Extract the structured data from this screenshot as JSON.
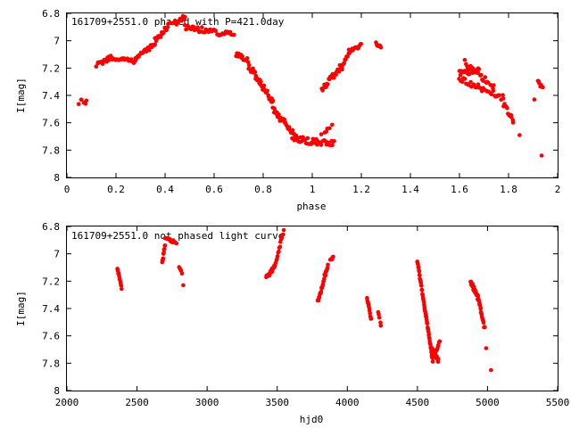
{
  "chart_data": [
    {
      "type": "scatter",
      "title": "161709+2551.0 phased with P=421.0day",
      "xlabel": "phase",
      "ylabel": "I[mag]",
      "xlim": [
        0,
        2
      ],
      "ylim": [
        8,
        6.8
      ],
      "y_inverted": true,
      "x_ticks": [
        0,
        0.2,
        0.4,
        0.6,
        0.8,
        1,
        1.2,
        1.4,
        1.6,
        1.8,
        2
      ],
      "x_tick_labels": [
        "0",
        "0.2",
        "0.4",
        "0.6",
        "0.8",
        "1",
        "1.2",
        "1.4",
        "1.6",
        "1.8",
        "2"
      ],
      "y_ticks": [
        6.8,
        7,
        7.2,
        7.4,
        7.6,
        7.8,
        8
      ],
      "y_tick_labels": [
        "6.8",
        "7",
        "7.2",
        "7.4",
        "7.6",
        "7.8",
        "8"
      ],
      "grid": false,
      "marker_color": "#ff0000",
      "segments": [
        {
          "x0": 0.05,
          "x1": 0.08,
          "y0": 7.45,
          "y1": 7.45,
          "n": 6,
          "spread": 0.04
        },
        {
          "x0": 0.12,
          "x1": 0.18,
          "y0": 7.18,
          "y1": 7.12,
          "n": 16,
          "spread": 0.03
        },
        {
          "x0": 0.18,
          "x1": 0.28,
          "y0": 7.13,
          "y1": 7.15,
          "n": 22,
          "spread": 0.03
        },
        {
          "x0": 0.28,
          "x1": 0.36,
          "y0": 7.13,
          "y1": 7.02,
          "n": 20,
          "spread": 0.03
        },
        {
          "x0": 0.36,
          "x1": 0.42,
          "y0": 7.0,
          "y1": 6.88,
          "n": 20,
          "spread": 0.04
        },
        {
          "x0": 0.43,
          "x1": 0.48,
          "y0": 6.88,
          "y1": 6.83,
          "n": 14,
          "spread": 0.04
        },
        {
          "x0": 0.48,
          "x1": 0.68,
          "y0": 6.9,
          "y1": 6.96,
          "n": 40,
          "spread": 0.04
        },
        {
          "x0": 0.69,
          "x1": 0.74,
          "y0": 7.1,
          "y1": 7.15,
          "n": 14,
          "spread": 0.04
        },
        {
          "x0": 0.74,
          "x1": 0.84,
          "y0": 7.18,
          "y1": 7.45,
          "n": 36,
          "spread": 0.05
        },
        {
          "x0": 0.84,
          "x1": 0.94,
          "y0": 7.5,
          "y1": 7.72,
          "n": 36,
          "spread": 0.05
        },
        {
          "x0": 0.92,
          "x1": 1.09,
          "y0": 7.72,
          "y1": 7.75,
          "n": 40,
          "spread": 0.05
        },
        {
          "x0": 1.04,
          "x1": 1.08,
          "y0": 7.68,
          "y1": 7.62,
          "n": 6,
          "spread": 0.02
        },
        {
          "x0": 1.04,
          "x1": 1.12,
          "y0": 7.35,
          "y1": 7.18,
          "n": 28,
          "spread": 0.05
        },
        {
          "x0": 1.12,
          "x1": 1.15,
          "y0": 7.2,
          "y1": 7.08,
          "n": 12,
          "spread": 0.03
        },
        {
          "x0": 1.15,
          "x1": 1.2,
          "y0": 7.08,
          "y1": 7.03,
          "n": 14,
          "spread": 0.03
        },
        {
          "x0": 1.26,
          "x1": 1.28,
          "y0": 7.02,
          "y1": 7.05,
          "n": 8,
          "spread": 0.02
        },
        {
          "x0": 1.6,
          "x1": 1.68,
          "y0": 7.24,
          "y1": 7.22,
          "n": 20,
          "spread": 0.04
        },
        {
          "x0": 1.62,
          "x1": 1.74,
          "y0": 7.16,
          "y1": 7.34,
          "n": 24,
          "spread": 0.04
        },
        {
          "x0": 1.6,
          "x1": 1.78,
          "y0": 7.28,
          "y1": 7.42,
          "n": 34,
          "spread": 0.04
        },
        {
          "x0": 1.78,
          "x1": 1.82,
          "y0": 7.46,
          "y1": 7.6,
          "n": 12,
          "spread": 0.04
        },
        {
          "x0": 1.92,
          "x1": 1.94,
          "y0": 7.3,
          "y1": 7.35,
          "n": 8,
          "spread": 0.04
        }
      ],
      "points": [
        {
          "x": 1.845,
          "y": 7.69
        },
        {
          "x": 1.905,
          "y": 7.43
        },
        {
          "x": 1.935,
          "y": 7.84
        }
      ]
    },
    {
      "type": "scatter",
      "title": "161709+2551.0 not phased light curve",
      "xlabel": "hjd0",
      "ylabel": "I[mag]",
      "xlim": [
        2000,
        5500
      ],
      "ylim": [
        8,
        6.8
      ],
      "y_inverted": true,
      "x_ticks": [
        2000,
        2500,
        3000,
        3500,
        4000,
        4500,
        5000,
        5500
      ],
      "x_tick_labels": [
        "2000",
        "2500",
        "3000",
        "3500",
        "4000",
        "4500",
        "5000",
        "5500"
      ],
      "y_ticks": [
        6.8,
        7,
        7.2,
        7.4,
        7.6,
        7.8,
        8
      ],
      "y_tick_labels": [
        "6.8",
        "7",
        "7.2",
        "7.4",
        "7.6",
        "7.8",
        "8"
      ],
      "grid": false,
      "marker_color": "#ff0000",
      "segments": [
        {
          "x0": 2360,
          "x1": 2390,
          "y0": 7.1,
          "y1": 7.25,
          "n": 14,
          "spread": 0.02
        },
        {
          "x0": 2680,
          "x1": 2700,
          "y0": 7.07,
          "y1": 6.93,
          "n": 10,
          "spread": 0.02
        },
        {
          "x0": 2700,
          "x1": 2780,
          "y0": 6.88,
          "y1": 6.92,
          "n": 20,
          "spread": 0.02
        },
        {
          "x0": 2800,
          "x1": 2820,
          "y0": 7.1,
          "y1": 7.14,
          "n": 5,
          "spread": 0.02
        },
        {
          "x0": 3420,
          "x1": 3480,
          "y0": 7.18,
          "y1": 7.1,
          "n": 18,
          "spread": 0.03
        },
        {
          "x0": 3480,
          "x1": 3545,
          "y0": 7.1,
          "y1": 6.83,
          "n": 16,
          "spread": 0.02
        },
        {
          "x0": 3790,
          "x1": 3860,
          "y0": 7.35,
          "y1": 7.08,
          "n": 26,
          "spread": 0.03
        },
        {
          "x0": 3880,
          "x1": 3900,
          "y0": 7.05,
          "y1": 7.03,
          "n": 6,
          "spread": 0.02
        },
        {
          "x0": 4140,
          "x1": 4170,
          "y0": 7.32,
          "y1": 7.48,
          "n": 12,
          "spread": 0.02
        },
        {
          "x0": 4220,
          "x1": 4240,
          "y0": 7.42,
          "y1": 7.52,
          "n": 5,
          "spread": 0.02
        },
        {
          "x0": 4500,
          "x1": 4560,
          "y0": 7.05,
          "y1": 7.45,
          "n": 30,
          "spread": 0.02
        },
        {
          "x0": 4560,
          "x1": 4610,
          "y0": 7.45,
          "y1": 7.78,
          "n": 30,
          "spread": 0.02
        },
        {
          "x0": 4600,
          "x1": 4650,
          "y0": 7.7,
          "y1": 7.78,
          "n": 20,
          "spread": 0.04
        },
        {
          "x0": 4630,
          "x1": 4660,
          "y0": 7.72,
          "y1": 7.64,
          "n": 8,
          "spread": 0.02
        },
        {
          "x0": 4880,
          "x1": 4930,
          "y0": 7.2,
          "y1": 7.32,
          "n": 24,
          "spread": 0.03
        },
        {
          "x0": 4930,
          "x1": 4980,
          "y0": 7.3,
          "y1": 7.55,
          "n": 22,
          "spread": 0.03
        }
      ],
      "points": [
        {
          "x": 2830,
          "y": 7.23
        },
        {
          "x": 4990,
          "y": 7.69
        },
        {
          "x": 5025,
          "y": 7.85
        }
      ]
    }
  ]
}
